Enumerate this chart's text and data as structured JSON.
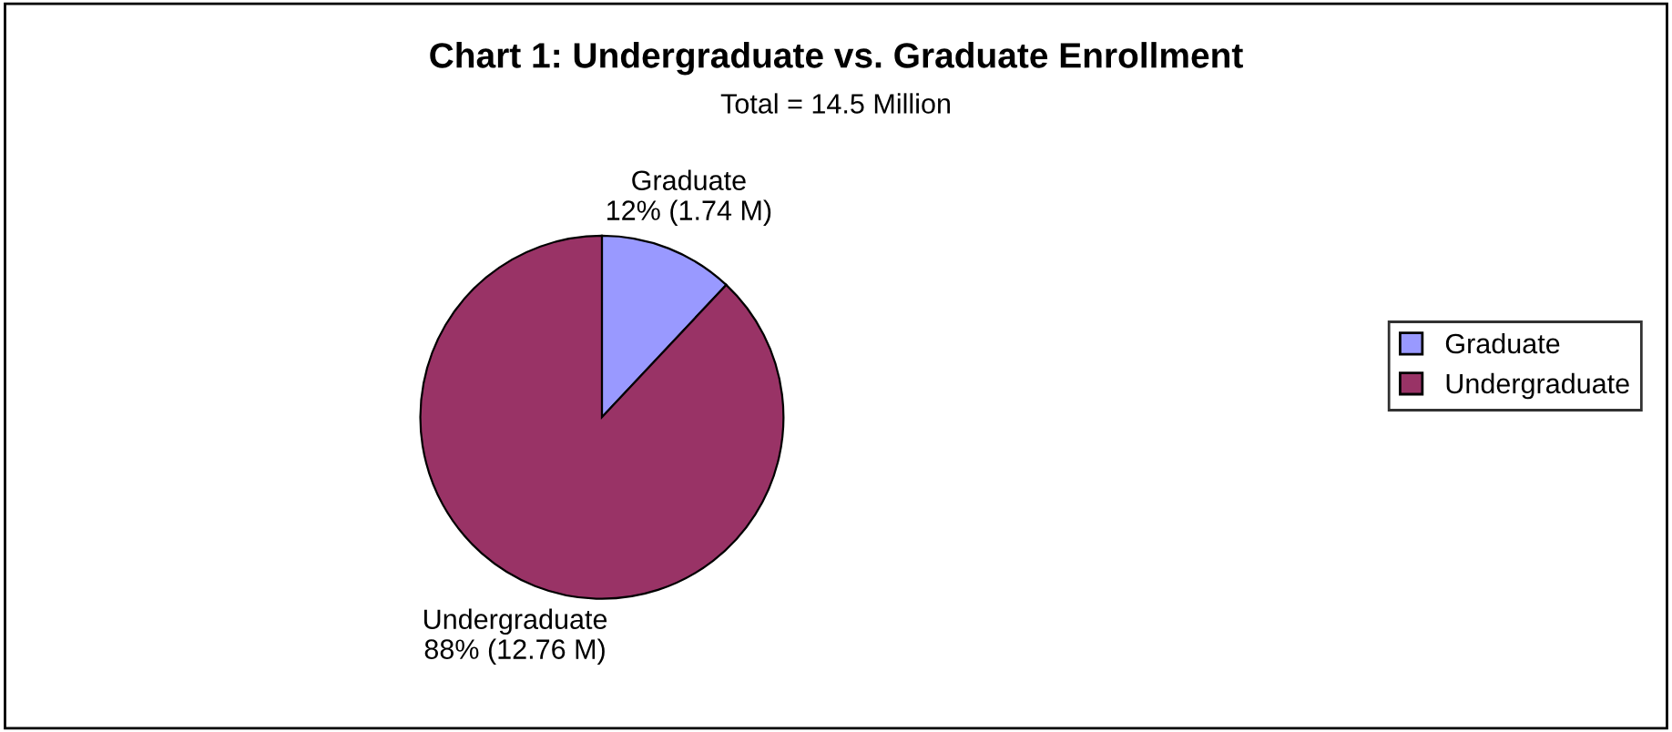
{
  "chart_data": {
    "type": "pie",
    "title": "Chart 1: Undergraduate vs. Graduate Enrollment",
    "subtitle": "Total = 14.5 Million",
    "categories": [
      "Graduate",
      "Undergraduate"
    ],
    "values": [
      12,
      88
    ],
    "value_labels": [
      "12% (1.74 M)",
      "88% (12.76 M)"
    ],
    "colors": [
      "#9999ff",
      "#993366"
    ],
    "legend": "right"
  }
}
